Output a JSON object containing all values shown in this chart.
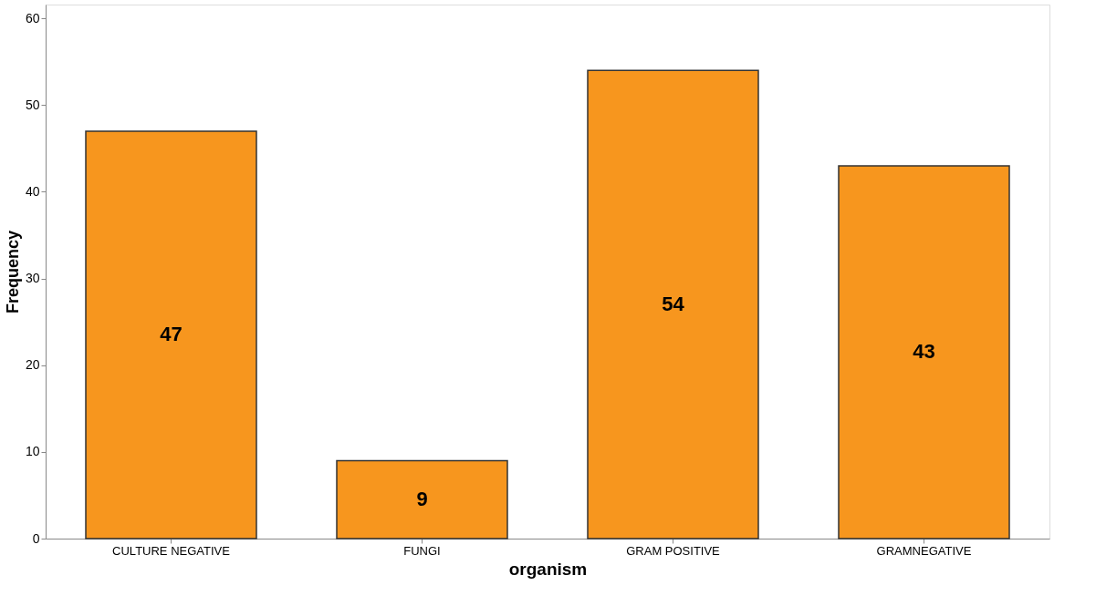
{
  "chart_data": {
    "type": "bar",
    "xlabel": "organism",
    "ylabel": "Frequency",
    "categories": [
      "CULTURE NEGATIVE",
      "FUNGI",
      "GRAM POSITIVE",
      "GRAMNEGATIVE"
    ],
    "values": [
      47,
      9,
      54,
      43
    ],
    "color": "#f7961e",
    "ylim": [
      0,
      61.6
    ],
    "yticks": [
      0,
      10,
      20,
      30,
      40,
      50,
      60
    ],
    "grid": false,
    "data_labels": true
  }
}
